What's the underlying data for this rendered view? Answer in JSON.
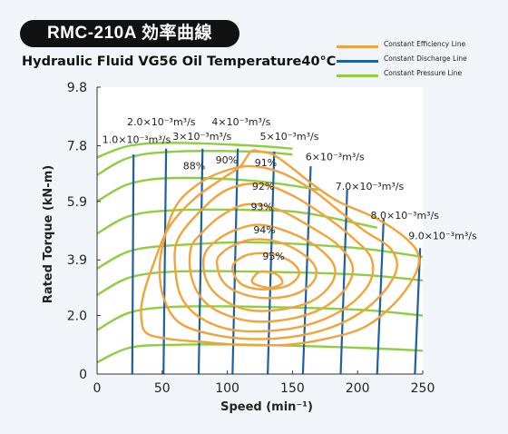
{
  "header": {
    "model": "RMC-210A 効率曲線",
    "subtitle": "Hydraulic Fluid VG56 Oil Temperature40°C"
  },
  "legend": [
    {
      "label": "Constant Efficiency Line",
      "color": "#f2a33a"
    },
    {
      "label": "Constant Discharge Line",
      "color": "#1f5fa3"
    },
    {
      "label": "Constant Pressure Line",
      "color": "#8fce3f"
    }
  ],
  "chart_data": {
    "type": "line",
    "xlabel": "Speed (min⁻¹)",
    "ylabel": "Rated Torque (kN-m)",
    "xlim": [
      0,
      250
    ],
    "ylim": [
      0,
      9.8
    ],
    "x_ticks": [
      "0",
      "50",
      "100",
      "150",
      "200",
      "250"
    ],
    "y_ticks": [
      "0",
      "2.0",
      "3.9",
      "5.9",
      "7.8",
      "9.8"
    ],
    "grid": false,
    "colors": {
      "efficiency": "#f2a33a",
      "discharge": "#1f5fa3",
      "pressure": "#8fce3f"
    },
    "discharge_lines": [
      {
        "label": "1.0×10⁻³m³/s",
        "points": [
          [
            28,
            7.5
          ],
          [
            27,
            0
          ]
        ]
      },
      {
        "label": "2.0×10⁻³m³/s",
        "points": [
          [
            53,
            7.7
          ],
          [
            51,
            0
          ]
        ]
      },
      {
        "label": "3×10⁻³m³/s",
        "points": [
          [
            81,
            7.7
          ],
          [
            78,
            0
          ]
        ]
      },
      {
        "label": "4×10⁻³m³/s",
        "points": [
          [
            108,
            7.7
          ],
          [
            104,
            0
          ]
        ]
      },
      {
        "label": "5×10⁻³m³/s",
        "points": [
          [
            136,
            7.6
          ],
          [
            131,
            0
          ]
        ]
      },
      {
        "label": "6×10⁻³m³/s",
        "points": [
          [
            164,
            7.1
          ],
          [
            158,
            0
          ]
        ]
      },
      {
        "label": "7.0×10⁻³m³/s",
        "points": [
          [
            192,
            6.3
          ],
          [
            187,
            0
          ]
        ]
      },
      {
        "label": "8.0×10⁻³m³/s",
        "points": [
          [
            220,
            5.3
          ],
          [
            215,
            0
          ]
        ]
      },
      {
        "label": "9.0×10⁻³m³/s",
        "points": [
          [
            248,
            4.3
          ],
          [
            244,
            0
          ]
        ]
      }
    ],
    "pressure_lines": [
      {
        "points": [
          [
            0,
            0.4
          ],
          [
            25,
            0.9
          ],
          [
            60,
            1.0
          ],
          [
            120,
            1.0
          ],
          [
            200,
            0.9
          ],
          [
            250,
            0.8
          ]
        ]
      },
      {
        "points": [
          [
            0,
            1.5
          ],
          [
            25,
            2.1
          ],
          [
            60,
            2.3
          ],
          [
            120,
            2.3
          ],
          [
            200,
            2.2
          ],
          [
            250,
            2.0
          ]
        ]
      },
      {
        "points": [
          [
            0,
            2.7
          ],
          [
            25,
            3.3
          ],
          [
            60,
            3.5
          ],
          [
            120,
            3.5
          ],
          [
            200,
            3.4
          ],
          [
            250,
            3.2
          ]
        ]
      },
      {
        "points": [
          [
            0,
            3.6
          ],
          [
            25,
            4.2
          ],
          [
            60,
            4.4
          ],
          [
            120,
            4.5
          ],
          [
            200,
            4.3
          ],
          [
            250,
            4.0
          ]
        ]
      },
      {
        "points": [
          [
            0,
            4.8
          ],
          [
            25,
            5.4
          ],
          [
            60,
            5.6
          ],
          [
            120,
            5.6
          ],
          [
            160,
            5.5
          ],
          [
            215,
            5.0
          ]
        ]
      },
      {
        "points": [
          [
            0,
            5.9
          ],
          [
            25,
            6.5
          ],
          [
            60,
            6.7
          ],
          [
            120,
            6.6
          ],
          [
            170,
            6.3
          ]
        ]
      },
      {
        "points": [
          [
            0,
            6.8
          ],
          [
            25,
            7.4
          ],
          [
            60,
            7.6
          ],
          [
            120,
            7.6
          ],
          [
            150,
            7.5
          ]
        ]
      },
      {
        "points": [
          [
            0,
            7.4
          ],
          [
            25,
            7.8
          ],
          [
            60,
            7.9
          ],
          [
            120,
            7.8
          ],
          [
            150,
            7.7
          ]
        ]
      }
    ],
    "efficiency_lines": [
      {
        "label": "88%",
        "points": [
          [
            125,
            7.6
          ],
          [
            118,
            7.6
          ],
          [
            110,
            7.1
          ],
          [
            97,
            6.7
          ],
          [
            75,
            6.0
          ],
          [
            55,
            5.0
          ],
          [
            42,
            3.6
          ],
          [
            35,
            2.6
          ],
          [
            34,
            1.9
          ],
          [
            38,
            1.4
          ],
          [
            55,
            1.2
          ],
          [
            80,
            1.1
          ],
          [
            110,
            1.0
          ],
          [
            145,
            1.0
          ],
          [
            175,
            1.2
          ],
          [
            205,
            1.6
          ],
          [
            228,
            2.4
          ],
          [
            243,
            3.3
          ],
          [
            247,
            4.0
          ],
          [
            238,
            4.6
          ],
          [
            215,
            5.3
          ],
          [
            185,
            5.9
          ],
          [
            165,
            6.5
          ],
          [
            148,
            7.1
          ],
          [
            135,
            7.5
          ],
          [
            125,
            7.6
          ]
        ]
      },
      {
        "label": "89%",
        "points": [
          [
            60,
            5.7
          ],
          [
            52,
            4.7
          ],
          [
            48,
            3.6
          ],
          [
            52,
            2.5
          ],
          [
            65,
            1.7
          ],
          [
            95,
            1.3
          ],
          [
            130,
            1.2
          ],
          [
            165,
            1.4
          ],
          [
            195,
            1.9
          ],
          [
            218,
            2.7
          ],
          [
            230,
            3.6
          ],
          [
            225,
            4.3
          ],
          [
            205,
            4.9
          ],
          [
            185,
            5.6
          ],
          [
            165,
            6.3
          ],
          [
            140,
            6.9
          ],
          [
            115,
            7.1
          ],
          [
            90,
            6.8
          ],
          [
            72,
            6.3
          ],
          [
            60,
            5.7
          ]
        ]
      },
      {
        "label": "90%",
        "points": [
          [
            62,
            4.6
          ],
          [
            60,
            3.6
          ],
          [
            65,
            2.6
          ],
          [
            80,
            1.9
          ],
          [
            105,
            1.5
          ],
          [
            140,
            1.5
          ],
          [
            170,
            1.8
          ],
          [
            195,
            2.4
          ],
          [
            210,
            3.2
          ],
          [
            210,
            4.0
          ],
          [
            195,
            4.7
          ],
          [
            175,
            5.4
          ],
          [
            150,
            6.1
          ],
          [
            125,
            6.5
          ],
          [
            100,
            6.3
          ],
          [
            80,
            5.6
          ],
          [
            62,
            4.6
          ]
        ]
      },
      {
        "label": "91%",
        "points": [
          [
            72,
            4.3
          ],
          [
            72,
            3.4
          ],
          [
            80,
            2.6
          ],
          [
            95,
            2.1
          ],
          [
            120,
            1.8
          ],
          [
            150,
            1.9
          ],
          [
            175,
            2.3
          ],
          [
            192,
            3.0
          ],
          [
            196,
            3.7
          ],
          [
            185,
            4.4
          ],
          [
            165,
            5.0
          ],
          [
            140,
            5.6
          ],
          [
            115,
            5.8
          ],
          [
            95,
            5.4
          ],
          [
            80,
            4.8
          ],
          [
            72,
            4.3
          ]
        ]
      },
      {
        "label": "92%",
        "points": [
          [
            82,
            4.0
          ],
          [
            84,
            3.2
          ],
          [
            95,
            2.6
          ],
          [
            115,
            2.2
          ],
          [
            140,
            2.2
          ],
          [
            165,
            2.5
          ],
          [
            180,
            3.1
          ],
          [
            182,
            3.7
          ],
          [
            170,
            4.3
          ],
          [
            150,
            4.8
          ],
          [
            125,
            5.1
          ],
          [
            105,
            4.9
          ],
          [
            90,
            4.5
          ],
          [
            82,
            4.0
          ]
        ]
      },
      {
        "label": "93%",
        "points": [
          [
            92,
            3.8
          ],
          [
            96,
            3.2
          ],
          [
            108,
            2.8
          ],
          [
            128,
            2.6
          ],
          [
            150,
            2.7
          ],
          [
            165,
            3.1
          ],
          [
            168,
            3.6
          ],
          [
            158,
            4.1
          ],
          [
            140,
            4.5
          ],
          [
            120,
            4.6
          ],
          [
            105,
            4.4
          ],
          [
            95,
            4.1
          ],
          [
            92,
            3.8
          ]
        ]
      },
      {
        "label": "94%",
        "points": [
          [
            104,
            3.6
          ],
          [
            110,
            3.1
          ],
          [
            125,
            2.9
          ],
          [
            145,
            3.0
          ],
          [
            155,
            3.4
          ],
          [
            150,
            3.8
          ],
          [
            135,
            4.1
          ],
          [
            118,
            4.1
          ],
          [
            108,
            3.9
          ],
          [
            104,
            3.6
          ]
        ]
      },
      {
        "label": "95%",
        "points": [
          [
            120,
            3.1
          ],
          [
            132,
            2.95
          ],
          [
            142,
            3.1
          ],
          [
            138,
            3.4
          ],
          [
            126,
            3.5
          ],
          [
            120,
            3.3
          ],
          [
            120,
            3.1
          ]
        ]
      }
    ],
    "efficiency_labels": [
      {
        "text": "88%",
        "x": 66,
        "y": 7.0
      },
      {
        "text": "90%",
        "x": 91,
        "y": 7.2
      },
      {
        "text": "91%",
        "x": 121,
        "y": 7.1
      },
      {
        "text": "92%",
        "x": 119,
        "y": 6.3
      },
      {
        "text": "93%",
        "x": 118,
        "y": 5.6
      },
      {
        "text": "94%",
        "x": 120,
        "y": 4.8
      },
      {
        "text": "95%",
        "x": 127,
        "y": 3.9
      }
    ],
    "discharge_labels": [
      {
        "text": "1.0×10⁻³m³/s",
        "x": 4,
        "y": 7.9
      },
      {
        "text": "2.0×10⁻³m³/s",
        "x": 23,
        "y": 8.5
      },
      {
        "text": "3×10⁻³m³/s",
        "x": 58,
        "y": 8.0
      },
      {
        "text": "4×10⁻³m³/s",
        "x": 88,
        "y": 8.5
      },
      {
        "text": "5×10⁻³m³/s",
        "x": 125,
        "y": 8.0
      },
      {
        "text": "6×10⁻³m³/s",
        "x": 160,
        "y": 7.3
      },
      {
        "text": "7.0×10⁻³m³/s",
        "x": 183,
        "y": 6.3
      },
      {
        "text": "8.0×10⁻³m³/s",
        "x": 210,
        "y": 5.3
      },
      {
        "text": "9.0×10⁻³m³/s",
        "x": 239,
        "y": 4.6
      }
    ]
  }
}
